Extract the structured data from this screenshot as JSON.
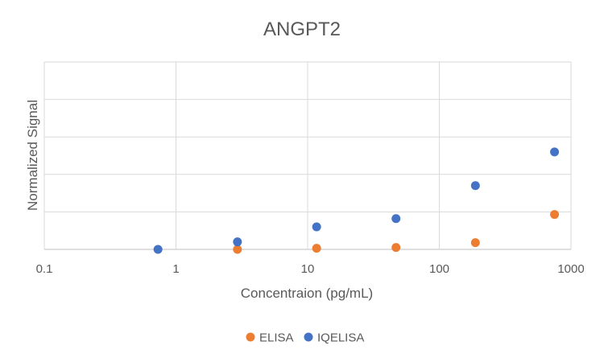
{
  "chart_data": {
    "type": "scatter",
    "title": "ANGPT2",
    "xlabel": "Concentraion (pg/mL)",
    "ylabel": "Normalized Signal",
    "xscale": "log",
    "xlim": [
      0.1,
      1000
    ],
    "ylim": [
      0,
      5
    ],
    "x_ticks": [
      0.1,
      1,
      10,
      100,
      1000
    ],
    "x_tick_labels": [
      "0.1",
      "1",
      "10",
      "100",
      "1000"
    ],
    "y_tick_labels_shown": false,
    "grid": true,
    "legend_position": "bottom",
    "series": [
      {
        "name": "ELISA",
        "color": "#ED7D31",
        "points": [
          {
            "x": 2.93,
            "y": 0.0
          },
          {
            "x": 11.7,
            "y": 0.03
          },
          {
            "x": 46.9,
            "y": 0.05
          },
          {
            "x": 188,
            "y": 0.18
          },
          {
            "x": 750,
            "y": 0.93
          }
        ]
      },
      {
        "name": "IQELISA",
        "color": "#4472C4",
        "points": [
          {
            "x": 0.73,
            "y": 0.0
          },
          {
            "x": 2.93,
            "y": 0.2
          },
          {
            "x": 11.7,
            "y": 0.6
          },
          {
            "x": 46.9,
            "y": 0.82
          },
          {
            "x": 188,
            "y": 1.7
          },
          {
            "x": 750,
            "y": 2.6
          }
        ]
      }
    ]
  }
}
